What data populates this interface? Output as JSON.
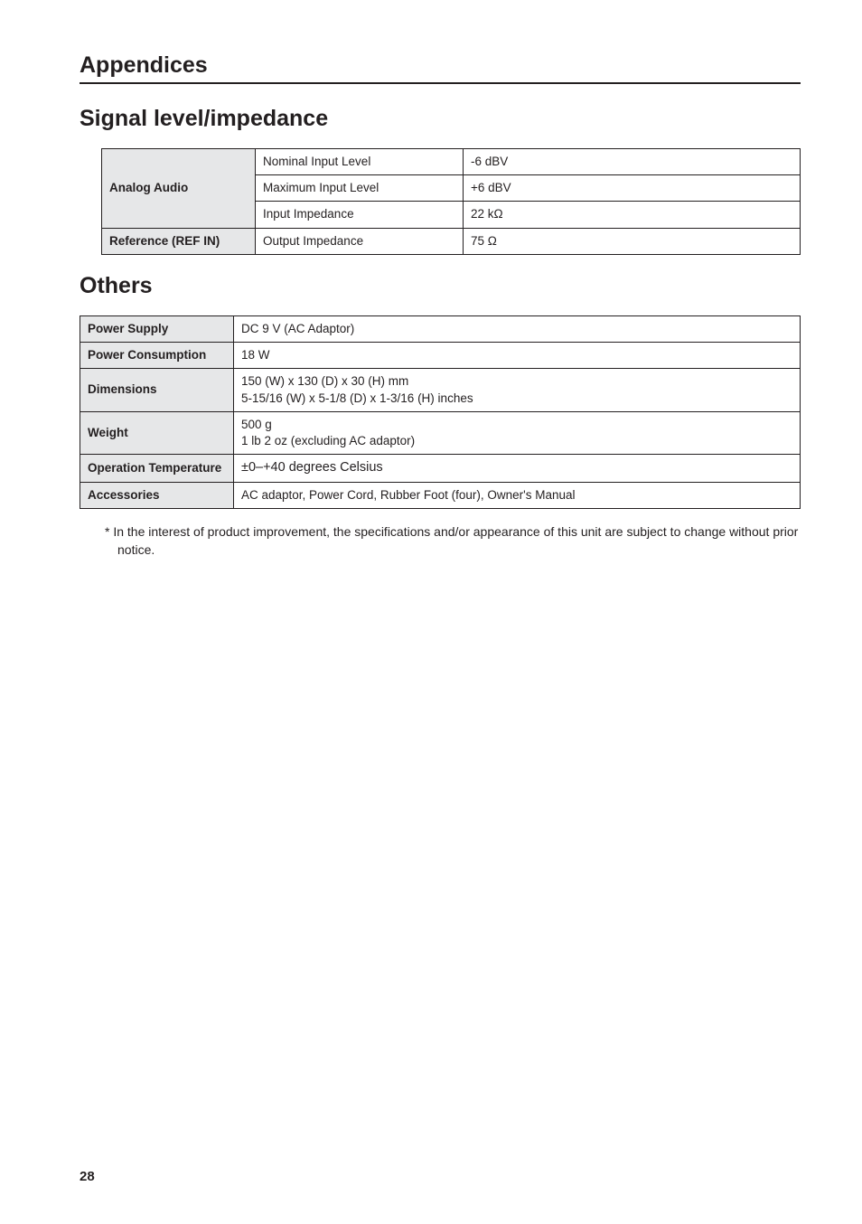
{
  "section_title": "Appendices",
  "signal": {
    "heading": "Signal level/impedance",
    "rows": [
      {
        "hdr": "Analog Audio",
        "rowspan": 3,
        "mid": "Nominal Input Level",
        "val": "-6 dBV"
      },
      {
        "mid": "Maximum Input Level",
        "val": "+6 dBV"
      },
      {
        "mid": "Input Impedance",
        "val": "22 kΩ"
      },
      {
        "hdr": "Reference (REF IN)",
        "rowspan": 1,
        "mid": "Output Impedance",
        "val": "75 Ω"
      }
    ]
  },
  "others": {
    "heading": "Others",
    "rows": [
      {
        "hdr": "Power Supply",
        "val": "DC 9 V (AC Adaptor)"
      },
      {
        "hdr": "Power Consumption",
        "val": "18 W"
      },
      {
        "hdr": "Dimensions",
        "val": "150 (W) x 130 (D) x 30 (H) mm\n5-15/16 (W) x 5-1/8 (D) x 1-3/16 (H) inches"
      },
      {
        "hdr": "Weight",
        "val": "500 g\n1 lb 2 oz (excluding AC adaptor)"
      },
      {
        "hdr": "Operation Temperature",
        "val": "±0–+40 degrees Celsius"
      },
      {
        "hdr": "Accessories",
        "val": "AC adaptor, Power Cord, Rubber Foot (four), Owner's Manual"
      }
    ]
  },
  "footnote": "*  In the interest of product improvement, the specifications and/or appearance of this unit are subject to change without prior notice.",
  "page_number": "28"
}
